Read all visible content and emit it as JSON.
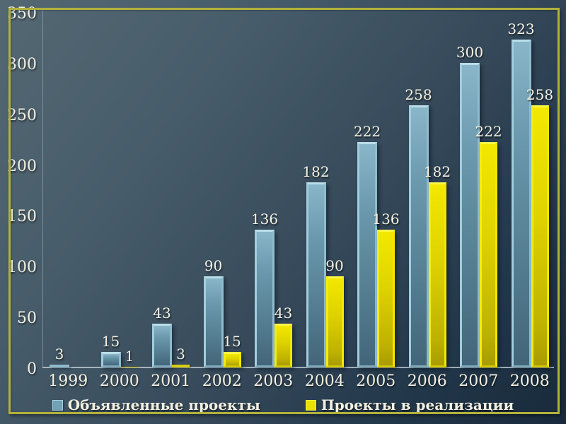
{
  "slide": {
    "frame_color": "#b2b13b",
    "background_top_left": "#546873",
    "background_bottom_right": "#182a3b"
  },
  "chart_data": {
    "type": "bar",
    "title": "",
    "xlabel": "",
    "ylabel": "",
    "categories": [
      "1999",
      "2000",
      "2001",
      "2002",
      "2003",
      "2004",
      "2005",
      "2006",
      "2007",
      "2008"
    ],
    "series": [
      {
        "name": "Объявленные проекты",
        "color": "#7fb0c4",
        "values": [
          3,
          15,
          43,
          90,
          136,
          182,
          222,
          258,
          300,
          323
        ]
      },
      {
        "name": "Проекты в реализации",
        "color": "#ece000",
        "values": [
          0,
          1,
          3,
          15,
          43,
          90,
          136,
          182,
          222,
          258
        ]
      }
    ],
    "data_labels_shown": true,
    "hidden_zero_labels": true,
    "ylim": [
      0,
      350
    ],
    "yticks": [
      0,
      50,
      100,
      150,
      200,
      250,
      300,
      350
    ],
    "grid": "none",
    "legend_position": "bottom",
    "text_color": "#f3f0e2"
  }
}
